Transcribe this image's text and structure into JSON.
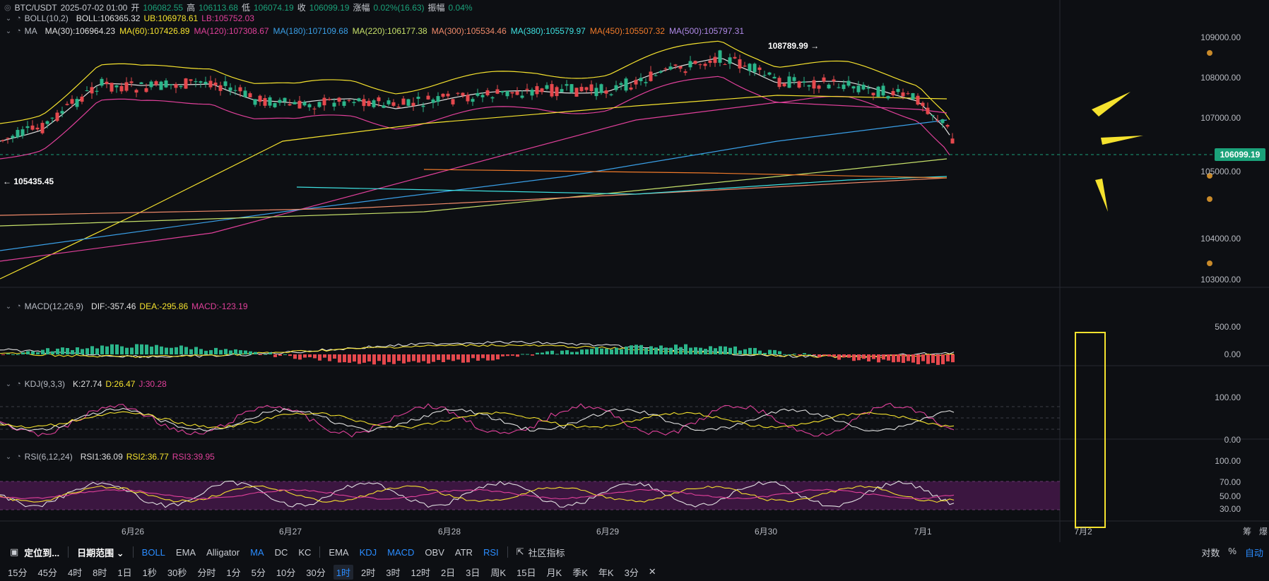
{
  "header": {
    "symbol": "BTC/USDT",
    "datetime": "2025-07-02 01:00",
    "open_label": "开",
    "open": "106082.55",
    "high_label": "高",
    "high": "106113.68",
    "low_label": "低",
    "low": "106074.19",
    "close_label": "收",
    "close": "106099.19",
    "change_label": "涨幅",
    "change": "0.02%(16.63)",
    "amp_label": "振幅",
    "amp": "0.04%"
  },
  "boll": {
    "name": "BOLL(10,2)",
    "mid": "BOLL:106365.32",
    "ub": "UB:106978.61",
    "lb": "LB:105752.03"
  },
  "ma": {
    "name": "MA",
    "items": [
      {
        "label": "MA(30):106964.23",
        "color": "#e0e0e0"
      },
      {
        "label": "MA(60):107426.89",
        "color": "#f5e22e"
      },
      {
        "label": "MA(120):107308.67",
        "color": "#e0409a"
      },
      {
        "label": "MA(180):107109.68",
        "color": "#3aa0e8"
      },
      {
        "label": "MA(220):106177.38",
        "color": "#c6e06a"
      },
      {
        "label": "MA(300):105534.46",
        "color": "#f08a6a"
      },
      {
        "label": "MA(380):105579.97",
        "color": "#3ee0e0"
      },
      {
        "label": "MA(450):105507.32",
        "color": "#f07a2a"
      },
      {
        "label": "MA(500):105797.31",
        "color": "#b08ae8"
      }
    ]
  },
  "macd": {
    "name": "MACD(12,26,9)",
    "dif": "DIF:-357.46",
    "dea": "DEA:-295.86",
    "macd": "MACD:-123.19"
  },
  "kdj": {
    "name": "KDJ(9,3,3)",
    "k": "K:27.74",
    "d": "D:26.47",
    "j": "J:30.28"
  },
  "rsi": {
    "name": "RSI(6,12,24)",
    "r1": "RSI1:36.09",
    "r2": "RSI2:36.77",
    "r3": "RSI3:39.95"
  },
  "price_axis": [
    "109000.00",
    "108000.00",
    "107000.00",
    "106000.00",
    "105000.00",
    "104000.00",
    "103000.00"
  ],
  "current_price": "106099.19",
  "high_marker": "108789.99",
  "low_marker": "105435.45",
  "macd_axis": [
    "500.00",
    "0.00"
  ],
  "kdj_axis": [
    "100.00",
    "0.00"
  ],
  "rsi_axis": [
    "100.00",
    "70.00",
    "50.00",
    "30.00"
  ],
  "dates": [
    "6月26",
    "6月27",
    "6月28",
    "6月29",
    "6月30",
    "7月1",
    "7月2"
  ],
  "corner_labels": [
    "筹",
    "爆"
  ],
  "toolbar1": {
    "locate": "定位到...",
    "range": "日期范围",
    "indicators": [
      {
        "label": "BOLL",
        "on": true
      },
      {
        "label": "EMA",
        "on": false
      },
      {
        "label": "Alligator",
        "on": false
      },
      {
        "label": "MA",
        "on": true
      },
      {
        "label": "DC",
        "on": false
      },
      {
        "label": "KC",
        "on": false
      }
    ],
    "sub_indicators": [
      {
        "label": "EMA",
        "on": false
      },
      {
        "label": "KDJ",
        "on": true
      },
      {
        "label": "MACD",
        "on": true
      },
      {
        "label": "OBV",
        "on": false
      },
      {
        "label": "ATR",
        "on": false
      },
      {
        "label": "RSI",
        "on": true
      }
    ],
    "community": "社区指标",
    "right": [
      {
        "label": "对数",
        "on": false
      },
      {
        "label": "%",
        "on": false
      },
      {
        "label": "自动",
        "on": true
      }
    ]
  },
  "timeframes": [
    "15分",
    "45分",
    "4时",
    "8时",
    "1日",
    "1秒",
    "30秒",
    "分时",
    "1分",
    "5分",
    "10分",
    "30分",
    "1时",
    "2时",
    "3时",
    "12时",
    "2日",
    "3日",
    "周K",
    "15日",
    "月K",
    "季K",
    "年K",
    "3分"
  ],
  "active_timeframe": "1时",
  "close_symbol": "✕",
  "icons": {
    "chevron": "chevron-down-icon",
    "bell": "bell-icon",
    "calendar": "calendar-icon"
  }
}
